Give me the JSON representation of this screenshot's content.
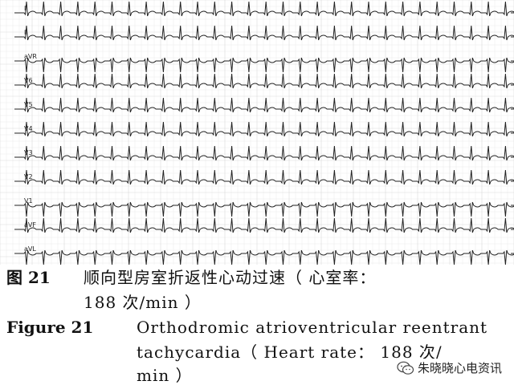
{
  "ecg": {
    "leads": [
      "I",
      "II",
      "aVR",
      "V6",
      "V5",
      "V4",
      "V3",
      "V2",
      "V1",
      "aVF",
      "aVL"
    ],
    "grid_color": "#d9d9d9",
    "trace_color": "#222222"
  },
  "caption": {
    "cn_label": "图 21",
    "cn_text_line1": "顺向型房室折返性心动过速（ 心室率：",
    "cn_text_line2": "188 次/min ）",
    "en_label": "Figure 21",
    "en_text_line1": "Orthodromic atrioventricular reentrant",
    "en_text_line2": "tachycardia（ Heart  rate： 188  次/",
    "en_text_line3": "min ）"
  },
  "watermark": {
    "icon": "wechat-icon",
    "text": "朱晓晓心电资讯"
  }
}
